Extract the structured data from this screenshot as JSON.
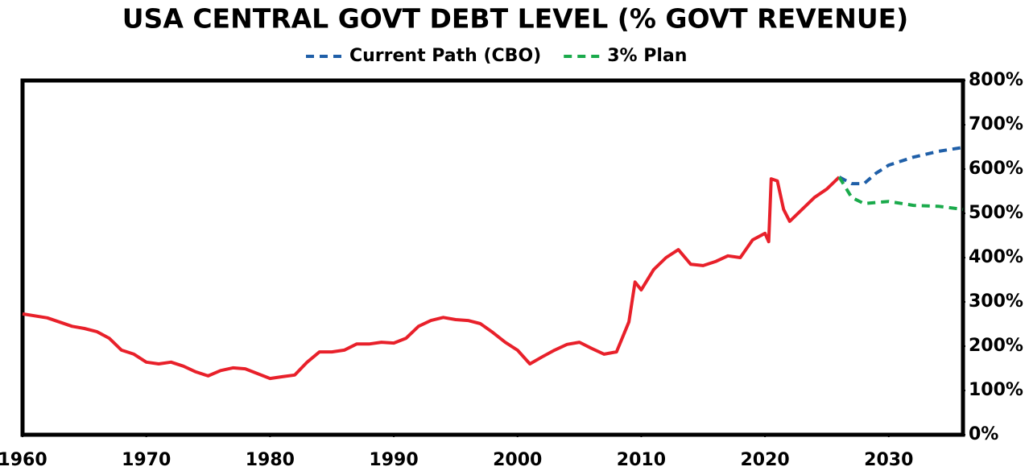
{
  "chart_data": {
    "type": "line",
    "title": "USA CENTRAL GOVT DEBT LEVEL (% GOVT REVENUE)",
    "xlim": [
      1960,
      2036
    ],
    "xticks": [
      1960,
      1970,
      1980,
      1990,
      2000,
      2010,
      2020,
      2030
    ],
    "ylim": [
      0,
      800
    ],
    "yticks": [
      {
        "value": 0,
        "label": "0%"
      },
      {
        "value": 100,
        "label": "100%"
      },
      {
        "value": 200,
        "label": "200%"
      },
      {
        "value": 300,
        "label": "300%"
      },
      {
        "value": 400,
        "label": "400%"
      },
      {
        "value": 500,
        "label": "500%"
      },
      {
        "value": 600,
        "label": "600%"
      },
      {
        "value": 700,
        "label": "700%"
      },
      {
        "value": 800,
        "label": "800%"
      }
    ],
    "y_axis_side": "right",
    "grid": false,
    "legend": "top",
    "series": [
      {
        "color": "#e8202a",
        "dashed": false,
        "x": [
          1960,
          1962,
          1964,
          1965,
          1966,
          1967,
          1968,
          1969,
          1970,
          1971,
          1972,
          1973,
          1974,
          1975,
          1976,
          1977,
          1978,
          1979,
          1980,
          1981,
          1982,
          1983,
          1984,
          1985,
          1986,
          1987,
          1988,
          1989,
          1990,
          1991,
          1992,
          1993,
          1994,
          1995,
          1996,
          1997,
          1998,
          1999,
          2000,
          2001,
          2002,
          2003,
          2004,
          2005,
          2006,
          2007,
          2008,
          2009,
          2009.5,
          2010,
          2011,
          2012,
          2013,
          2014,
          2015,
          2016,
          2017,
          2018,
          2019,
          2020,
          2020.3,
          2020.5,
          2021,
          2021.5,
          2022,
          2023,
          2024,
          2025,
          2026
        ],
        "values": [
          273,
          264,
          245,
          240,
          233,
          218,
          191,
          182,
          164,
          160,
          164,
          155,
          142,
          133,
          145,
          151,
          149,
          138,
          127,
          131,
          135,
          164,
          187,
          187,
          191,
          205,
          205,
          209,
          207,
          218,
          245,
          258,
          265,
          260,
          258,
          251,
          231,
          209,
          191,
          160,
          176,
          191,
          204,
          209,
          195,
          182,
          187,
          255,
          345,
          327,
          373,
          400,
          418,
          385,
          382,
          391,
          404,
          400,
          440,
          455,
          436,
          578,
          573,
          509,
          482,
          509,
          536,
          555,
          582
        ]
      },
      {
        "name": "Current Path (CBO)",
        "color": "#1f5fa8",
        "dashed": true,
        "x": [
          2026,
          2027,
          2028,
          2029,
          2030,
          2032,
          2034,
          2036
        ],
        "values": [
          582,
          567,
          567,
          591,
          609,
          627,
          640,
          649
        ]
      },
      {
        "name": "3% Plan",
        "color": "#1aaa4b",
        "dashed": true,
        "x": [
          2026,
          2027,
          2028,
          2030,
          2032,
          2034,
          2036
        ],
        "values": [
          582,
          536,
          522,
          527,
          518,
          516,
          509
        ]
      }
    ]
  }
}
